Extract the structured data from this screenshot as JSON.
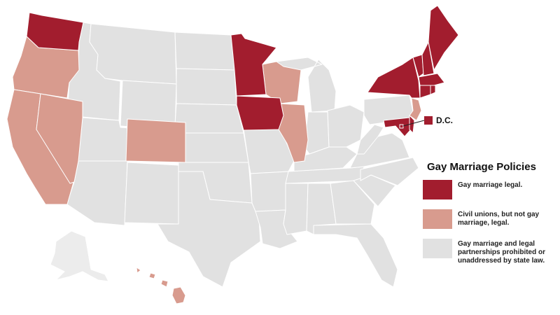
{
  "map": {
    "title": "Gay Marriage Policies",
    "colors": {
      "gay_marriage_legal": "#a21d2e",
      "civil_unions": "#d89b8e",
      "prohibited_or_unaddressed": "#e1e1e1"
    },
    "dc_callout": {
      "label": "D.C.",
      "category": "gay_marriage_legal"
    },
    "legend": [
      {
        "category": "gay_marriage_legal",
        "color": "#a21d2e",
        "label": "Gay marriage legal."
      },
      {
        "category": "civil_unions",
        "color": "#d89b8e",
        "label": "Civil unions, but not gay marriage, legal."
      },
      {
        "category": "prohibited_or_unaddressed",
        "color": "#e1e1e1",
        "label": "Gay marriage and legal partnerships prohibited or unaddressed by state law."
      }
    ],
    "states": {
      "gay_marriage_legal": [
        "Washington",
        "Minnesota",
        "Iowa",
        "New York",
        "Vermont",
        "New Hampshire",
        "Maine",
        "Massachusetts",
        "Connecticut",
        "Rhode Island",
        "Maryland",
        "Delaware",
        "D.C."
      ],
      "civil_unions": [
        "Oregon",
        "California",
        "Nevada",
        "Colorado",
        "Wisconsin",
        "Illinois",
        "New Jersey",
        "Hawaii"
      ]
    }
  }
}
